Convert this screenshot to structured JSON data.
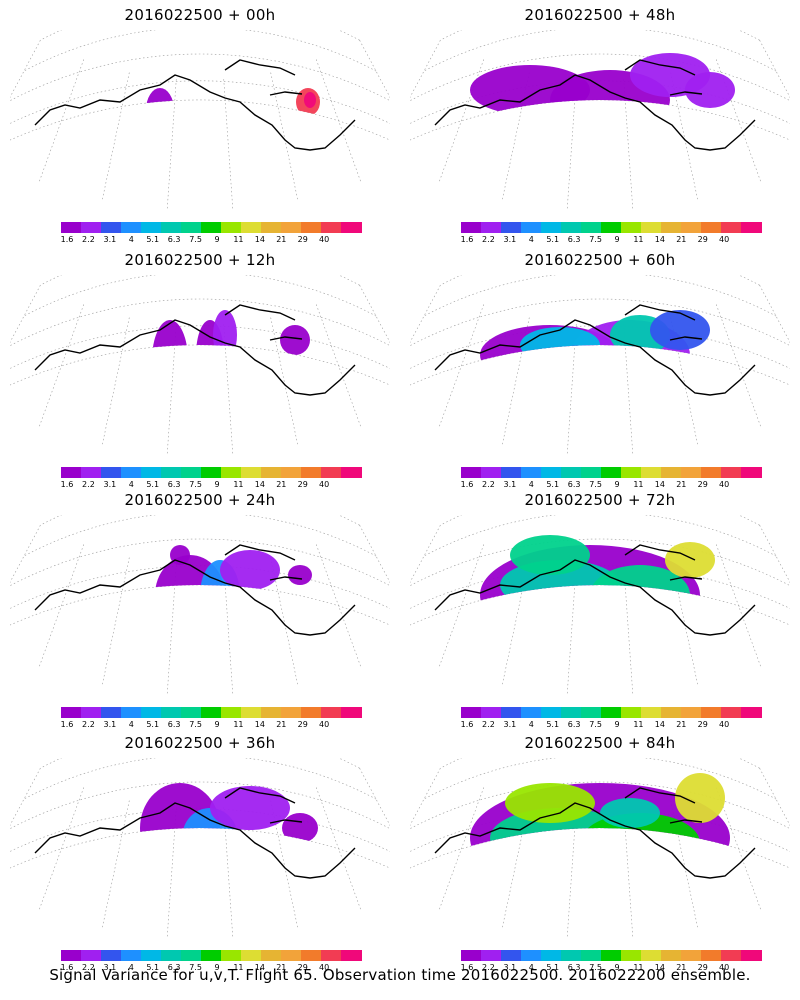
{
  "panels": [
    {
      "title": "2016022500 + 00h"
    },
    {
      "title": "2016022500 + 48h"
    },
    {
      "title": "2016022500 + 12h"
    },
    {
      "title": "2016022500 + 60h"
    },
    {
      "title": "2016022500 + 24h"
    },
    {
      "title": "2016022500 + 72h"
    },
    {
      "title": "2016022500 + 36h"
    },
    {
      "title": "2016022500 + 84h"
    }
  ],
  "colorbar": {
    "labels": [
      "1.6",
      "2.2",
      "3.1",
      "4",
      "5.1",
      "6.3",
      "7.5",
      "9",
      "11",
      "14",
      "21",
      "29",
      "40"
    ],
    "colors": [
      "#9900cc",
      "#a020f0",
      "#3355ee",
      "#1e90ff",
      "#00b8e6",
      "#00c8b0",
      "#00d28c",
      "#00cc00",
      "#99e600",
      "#dddd33",
      "#e6b433",
      "#f2a33a",
      "#f27b2b",
      "#f23c53",
      "#f0087a"
    ]
  },
  "footer": "Signal Variance for u,v,T. Flight 65. Observation time 2016022500. 2016022200 ensemble."
}
